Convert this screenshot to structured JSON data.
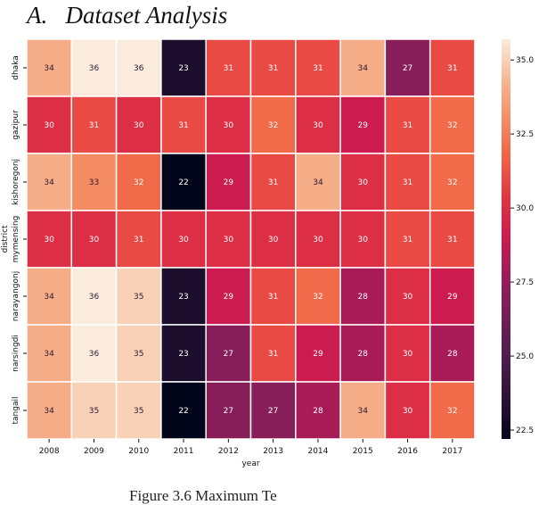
{
  "heading": "A.   Dataset Analysis",
  "caption": "Figure 3.6 Maximum Te",
  "chart_data": {
    "type": "heatmap",
    "title": "",
    "xlabel": "year",
    "ylabel": "district",
    "x_categories": [
      "2008",
      "2009",
      "2010",
      "2011",
      "2012",
      "2013",
      "2014",
      "2015",
      "2016",
      "2017"
    ],
    "y_categories": [
      "dhaka",
      "gazipur",
      "kishoregonj",
      "mymensing",
      "narayangonj",
      "narsingdi",
      "tangail"
    ],
    "values": [
      [
        34,
        36,
        36,
        23,
        31,
        31,
        31,
        34,
        27,
        31
      ],
      [
        30,
        31,
        30,
        31,
        30,
        32,
        30,
        29,
        31,
        32
      ],
      [
        34,
        33,
        32,
        22,
        29,
        31,
        34,
        30,
        31,
        32
      ],
      [
        30,
        30,
        31,
        30,
        30,
        30,
        30,
        30,
        31,
        31
      ],
      [
        34,
        36,
        35,
        23,
        29,
        31,
        32,
        28,
        30,
        29
      ],
      [
        34,
        36,
        35,
        23,
        27,
        31,
        29,
        28,
        30,
        28
      ],
      [
        34,
        35,
        35,
        22,
        27,
        27,
        28,
        34,
        30,
        32
      ]
    ],
    "colorbar": {
      "range": [
        22.2,
        35.7
      ],
      "ticks": [
        "22.5",
        "25.0",
        "27.5",
        "30.0",
        "32.5",
        "35.0"
      ],
      "tick_values": [
        22.5,
        25,
        27.5,
        30,
        32.5,
        35
      ]
    },
    "colormap": "rocket",
    "colormap_stops": [
      "#03051a",
      "#2b1237",
      "#4c1d4b",
      "#711f57",
      "#991b5a",
      "#cb1b4f",
      "#e13342",
      "#f06043",
      "#f48c63",
      "#f6b893",
      "#faebdd"
    ],
    "annotated": true
  }
}
